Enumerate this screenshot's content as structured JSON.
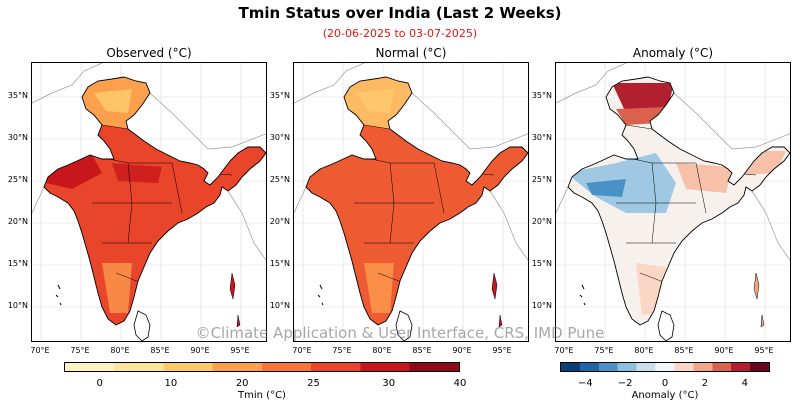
{
  "title": "Tmin Status over India (Last 2 Weeks)",
  "subtitle": "(20-06-2025 to 03-07-2025)",
  "watermark": "©Climate Application & User Interface, CRS, IMD Pune",
  "panels": [
    {
      "title": "Observed (°C)",
      "kind": "obs"
    },
    {
      "title": "Normal (°C)",
      "kind": "normal"
    },
    {
      "title": "Anomaly (°C)",
      "kind": "anomaly"
    }
  ],
  "lat_labels": [
    "35°N",
    "30°N",
    "25°N",
    "20°N",
    "15°N",
    "10°N"
  ],
  "lon_labels": [
    "70°E",
    "75°E",
    "80°E",
    "85°E",
    "90°E",
    "95°E"
  ],
  "tmin_colorbar": {
    "ticks": [
      "0",
      "10",
      "20",
      "25",
      "30",
      "40"
    ],
    "label": "Tmin (°C)",
    "colors": [
      "#fff3c0",
      "#fee49a",
      "#fdc96b",
      "#fda04d",
      "#f8753a",
      "#e8452b",
      "#c8171c",
      "#8c0a16"
    ]
  },
  "anomaly_colorbar": {
    "ticks": [
      "−4",
      "−2",
      "0",
      "2",
      "4"
    ],
    "label": "Anomaly (°C)",
    "colors": [
      "#0c3e78",
      "#1f66a9",
      "#4a92c6",
      "#8dc0de",
      "#c6e0ef",
      "#f3f6f9",
      "#fad6c4",
      "#f3a584",
      "#d9614d",
      "#b21f2f",
      "#6b0620"
    ]
  },
  "colors": {
    "obs_main": "#e8452b",
    "obs_hot": "#c8171c",
    "obs_north": "#fda04d",
    "normal_main": "#ee5a32",
    "normal_north": "#fdba63",
    "anom_cool": "#9fc8e2",
    "anom_warm": "#f6c1a8",
    "anom_hot": "#b21f2f"
  }
}
